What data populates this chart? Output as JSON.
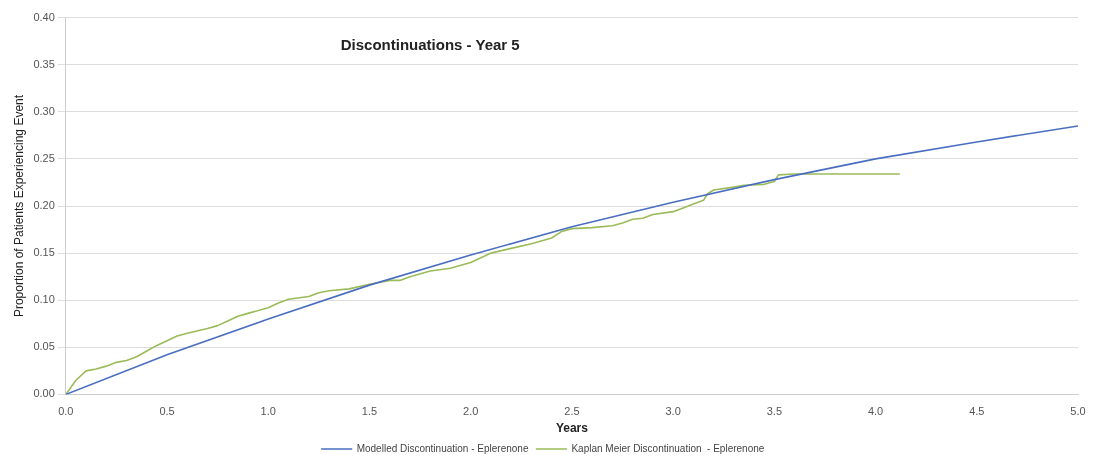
{
  "chart_data": {
    "type": "line",
    "title": "Discontinuations - Year 5",
    "xlabel": "Years",
    "ylabel": "Proportion of Patients Experiencing Event",
    "xlim": [
      0,
      5
    ],
    "xticks": [
      {
        "value": 0,
        "label": "0.0"
      },
      0.5,
      {
        "value": 1,
        "label": "1.0"
      },
      1.5,
      {
        "value": 2,
        "label": "2.0"
      },
      2.5,
      {
        "value": 3,
        "label": "3.0"
      },
      3.5,
      {
        "value": 4,
        "label": "4.0"
      },
      4.5,
      {
        "value": 5,
        "label": "5.0"
      }
    ],
    "ylim": [
      0,
      0.4
    ],
    "yticks": [
      {
        "value": 0,
        "label": "0.00"
      },
      0.05,
      {
        "value": 0.1,
        "label": "0.10"
      },
      0.15,
      {
        "value": 0.2,
        "label": "0.20"
      },
      0.25,
      {
        "value": 0.3,
        "label": "0.30"
      },
      0.35,
      {
        "value": 0.4,
        "label": "0.40"
      }
    ],
    "grid": "y",
    "legend": "bottom",
    "marker": "none",
    "line_style": "solid",
    "series": [
      {
        "name": "Modelled Discontinuation - Eplerenone",
        "color": "#4a6fc1",
        "x": [
          0,
          0.5,
          1,
          1.5,
          2,
          2.5,
          3,
          3.5,
          4,
          4.5,
          5
        ],
        "values": [
          0,
          0.042,
          0.08,
          0.116,
          0.148,
          0.178,
          0.204,
          0.228,
          0.25,
          0.268,
          0.285
        ]
      },
      {
        "name": "Kaplan Meier Discontinuation  - Eplerenone",
        "color": "#9bbb59",
        "x": [
          0,
          0.05,
          0.1,
          0.15,
          0.2,
          0.25,
          0.3,
          0.35,
          0.4,
          0.45,
          0.5,
          0.55,
          0.6,
          0.7,
          0.75,
          0.8,
          0.85,
          0.9,
          1,
          1.05,
          1.1,
          1.2,
          1.25,
          1.3,
          1.4,
          1.5,
          1.6,
          1.65,
          1.7,
          1.8,
          1.9,
          2,
          2.1,
          2.2,
          2.3,
          2.4,
          2.45,
          2.5,
          2.6,
          2.7,
          2.75,
          2.8,
          2.85,
          2.9,
          3,
          3.05,
          3.1,
          3.15,
          3.17,
          3.2,
          3.3,
          3.35,
          3.45,
          3.5,
          3.52,
          3.6,
          4.12
        ],
        "values": [
          0,
          0.015,
          0.025,
          0.027,
          0.03,
          0.034,
          0.036,
          0.04,
          0.046,
          0.052,
          0.057,
          0.062,
          0.065,
          0.07,
          0.073,
          0.078,
          0.083,
          0.086,
          0.092,
          0.097,
          0.101,
          0.104,
          0.108,
          0.11,
          0.112,
          0.117,
          0.121,
          0.121,
          0.125,
          0.131,
          0.134,
          0.14,
          0.15,
          0.155,
          0.16,
          0.166,
          0.173,
          0.176,
          0.177,
          0.179,
          0.182,
          0.186,
          0.187,
          0.191,
          0.194,
          0.198,
          0.202,
          0.206,
          0.213,
          0.217,
          0.22,
          0.222,
          0.223,
          0.226,
          0.233,
          0.234,
          0.234
        ]
      }
    ]
  }
}
